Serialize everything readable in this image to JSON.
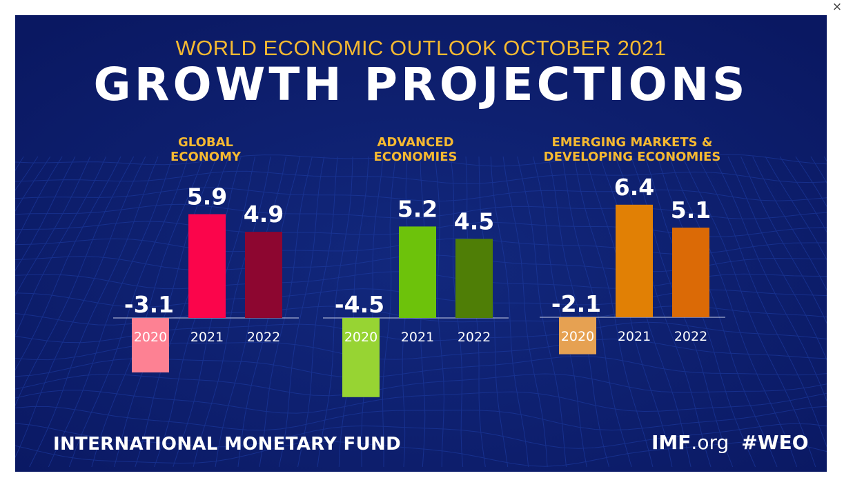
{
  "close_symbol": "×",
  "supertitle": "WORLD ECONOMIC OUTLOOK OCTOBER 2021",
  "title": "GROWTH PROJECTIONS",
  "footer": {
    "organization": "INTERNATIONAL MONETARY FUND",
    "site_bold": "IMF",
    "site_rest": ".org",
    "hashtag": "#WEO"
  },
  "colors": {
    "background": "#0b1b64",
    "heading": "#f6b931",
    "text": "#ffffff"
  },
  "chart_data": [
    {
      "type": "bar",
      "title": "GLOBAL ECONOMY",
      "title_lines": [
        "GLOBAL",
        "ECONOMY"
      ],
      "categories": [
        "2020",
        "2021",
        "2022"
      ],
      "values": [
        -3.1,
        5.9,
        4.9
      ],
      "value_labels": [
        "-3.1",
        "5.9",
        "4.9"
      ],
      "colors": [
        "#fd8193",
        "#fb054b",
        "#8d0630"
      ]
    },
    {
      "type": "bar",
      "title": "ADVANCED ECONOMIES",
      "title_lines": [
        "ADVANCED",
        "ECONOMIES"
      ],
      "categories": [
        "2020",
        "2021",
        "2022"
      ],
      "values": [
        -4.5,
        5.2,
        4.5
      ],
      "value_labels": [
        "-4.5",
        "5.2",
        "4.5"
      ],
      "colors": [
        "#97d433",
        "#6dc20b",
        "#4f7e06"
      ]
    },
    {
      "type": "bar",
      "title": "EMERGING MARKETS & DEVELOPING ECONOMIES",
      "title_lines": [
        "EMERGING MARKETS &",
        "DEVELOPING ECONOMIES"
      ],
      "categories": [
        "2020",
        "2021",
        "2022"
      ],
      "values": [
        -2.1,
        6.4,
        5.1
      ],
      "value_labels": [
        "-2.1",
        "6.4",
        "5.1"
      ],
      "colors": [
        "#e6a152",
        "#e18005",
        "#db6a06"
      ]
    }
  ]
}
